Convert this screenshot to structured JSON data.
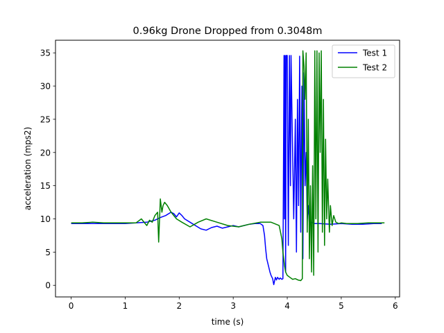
{
  "chart_data": {
    "type": "line",
    "title": "0.96kg Drone Dropped from 0.3048m",
    "xlabel": "time (s)",
    "ylabel": "acceleration (mps2)",
    "xlim": [
      -0.29,
      6.08
    ],
    "ylim": [
      -1.75,
      36.9
    ],
    "xticks": [
      0,
      1,
      2,
      3,
      4,
      5,
      6
    ],
    "yticks": [
      0,
      5,
      10,
      15,
      20,
      25,
      30,
      35
    ],
    "grid": false,
    "legend_position": "top-right",
    "series": [
      {
        "name": "Test 1",
        "color": "#0000ff",
        "x": [
          0.0,
          0.2,
          0.4,
          0.6,
          0.8,
          1.0,
          1.2,
          1.4,
          1.55,
          1.65,
          1.75,
          1.85,
          1.9,
          1.95,
          2.0,
          2.05,
          2.1,
          2.2,
          2.3,
          2.4,
          2.5,
          2.6,
          2.7,
          2.8,
          2.9,
          3.0,
          3.1,
          3.2,
          3.3,
          3.4,
          3.5,
          3.55,
          3.58,
          3.6,
          3.62,
          3.65,
          3.68,
          3.7,
          3.73,
          3.75,
          3.78,
          3.8,
          3.82,
          3.85,
          3.87,
          3.9,
          3.92,
          3.94,
          3.95,
          3.96,
          3.97,
          3.98,
          4.0,
          4.02,
          4.04,
          4.06,
          4.07,
          4.1,
          4.12,
          4.15,
          4.17,
          4.19,
          4.21,
          4.23,
          4.25,
          4.27,
          4.29,
          4.31,
          4.33,
          4.35,
          4.37,
          4.39,
          4.41,
          4.45,
          4.5,
          4.6,
          4.8,
          5.0,
          5.2,
          5.4,
          5.6,
          5.75
        ],
        "y": [
          9.3,
          9.3,
          9.3,
          9.3,
          9.3,
          9.3,
          9.4,
          9.5,
          9.8,
          10.2,
          10.5,
          11.0,
          10.8,
          10.3,
          10.9,
          10.5,
          10.0,
          9.5,
          9.0,
          8.5,
          8.3,
          8.7,
          8.9,
          8.6,
          8.8,
          9.0,
          8.8,
          9.0,
          9.2,
          9.3,
          9.3,
          9.0,
          7.5,
          5.5,
          4.0,
          3.0,
          2.0,
          1.5,
          1.0,
          0.1,
          1.2,
          0.8,
          1.2,
          0.9,
          1.1,
          0.9,
          1.0,
          34.6,
          10.0,
          34.6,
          2.0,
          34.6,
          34.6,
          6.0,
          34.6,
          15.0,
          34.6,
          20.0,
          10.0,
          25.0,
          5.0,
          28.0,
          12.0,
          34.5,
          8.0,
          30.0,
          4.0,
          32.0,
          15.0,
          20.0,
          10.0,
          12.0,
          9.0,
          9.5,
          9.3,
          9.3,
          9.2,
          9.3,
          9.2,
          9.2,
          9.3,
          9.3
        ]
      },
      {
        "name": "Test 2",
        "color": "#008000",
        "x": [
          0.0,
          0.2,
          0.4,
          0.6,
          0.8,
          1.0,
          1.2,
          1.3,
          1.4,
          1.45,
          1.5,
          1.55,
          1.6,
          1.62,
          1.65,
          1.68,
          1.7,
          1.73,
          1.78,
          1.85,
          1.95,
          2.05,
          2.2,
          2.35,
          2.5,
          2.7,
          2.9,
          3.1,
          3.3,
          3.5,
          3.7,
          3.85,
          3.9,
          3.92,
          3.95,
          3.97,
          4.0,
          4.05,
          4.1,
          4.15,
          4.2,
          4.25,
          4.28,
          4.29,
          4.31,
          4.33,
          4.35,
          4.37,
          4.39,
          4.41,
          4.43,
          4.45,
          4.47,
          4.49,
          4.51,
          4.53,
          4.55,
          4.57,
          4.59,
          4.61,
          4.63,
          4.65,
          4.67,
          4.69,
          4.71,
          4.73,
          4.75,
          4.78,
          4.8,
          4.83,
          4.86,
          4.9,
          4.95,
          5.0,
          5.1,
          5.3,
          5.5,
          5.7,
          5.8
        ],
        "y": [
          9.4,
          9.4,
          9.5,
          9.4,
          9.4,
          9.4,
          9.4,
          10.0,
          9.0,
          9.8,
          9.5,
          10.5,
          11.0,
          6.5,
          13.0,
          11.0,
          12.0,
          12.5,
          12.0,
          11.0,
          10.0,
          9.5,
          8.8,
          9.5,
          10.0,
          9.5,
          9.0,
          8.8,
          9.2,
          9.5,
          9.5,
          9.0,
          7.0,
          5.0,
          3.0,
          2.0,
          1.5,
          1.2,
          0.9,
          1.0,
          0.8,
          0.7,
          1.0,
          35.3,
          33.0,
          28.0,
          35.0,
          8.0,
          25.0,
          4.0,
          15.0,
          2.0,
          18.0,
          1.5,
          35.3,
          10.0,
          35.3,
          5.0,
          35.0,
          20.0,
          35.3,
          8.0,
          28.0,
          6.0,
          22.0,
          10.0,
          16.0,
          8.0,
          12.0,
          9.0,
          10.5,
          9.5,
          9.3,
          9.4,
          9.3,
          9.3,
          9.4,
          9.4,
          9.4
        ]
      }
    ]
  }
}
